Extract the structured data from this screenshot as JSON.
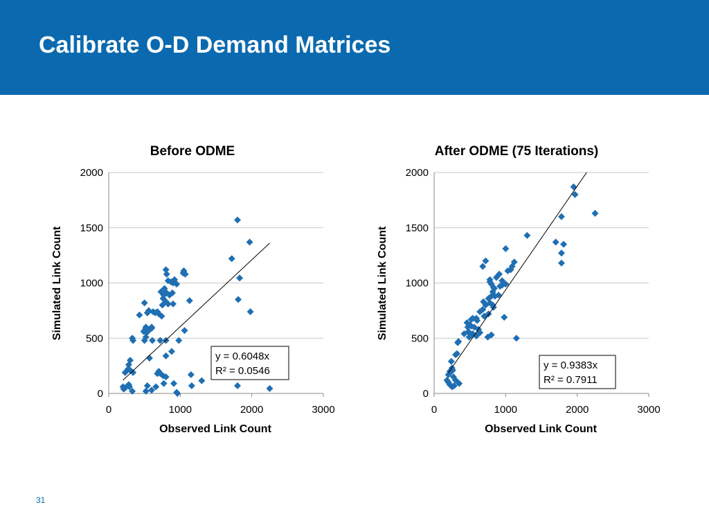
{
  "slide": {
    "title": "Calibrate O-D Demand Matrices",
    "page_number": "31",
    "title_bar_color": "#0b6aaf"
  },
  "chart_data": [
    {
      "type": "scatter",
      "title": "Before ODME",
      "xlabel": "Observed Link Count",
      "ylabel": "Simulated Link Count",
      "xlim": [
        0,
        3000
      ],
      "ylim": [
        0,
        2000
      ],
      "xticks": [
        "0",
        "1000",
        "2000",
        "3000"
      ],
      "yticks": [
        "0",
        "500",
        "1000",
        "1500",
        "2000"
      ],
      "marker": "diamond",
      "marker_color": "#1f6fb2",
      "grid": "horizontal",
      "trendline": {
        "slope": 0.6048,
        "x_range": [
          200,
          2250
        ],
        "equation": "y = 0.6048x",
        "r2": "R² = 0.0546"
      },
      "points": [
        [
          1800,
          1570
        ],
        [
          1970,
          1370
        ],
        [
          1720,
          1220
        ],
        [
          1830,
          1045
        ],
        [
          1810,
          850
        ],
        [
          1980,
          740
        ],
        [
          1800,
          70
        ],
        [
          2250,
          45
        ],
        [
          1300,
          115
        ],
        [
          800,
          1120
        ],
        [
          810,
          1080
        ],
        [
          1050,
          1110
        ],
        [
          1070,
          1080
        ],
        [
          1040,
          1090
        ],
        [
          870,
          1010
        ],
        [
          830,
          1020
        ],
        [
          900,
          1000
        ],
        [
          950,
          990
        ],
        [
          920,
          1030
        ],
        [
          730,
          920
        ],
        [
          780,
          950
        ],
        [
          810,
          910
        ],
        [
          890,
          910
        ],
        [
          770,
          890
        ],
        [
          850,
          890
        ],
        [
          760,
          860
        ],
        [
          800,
          830
        ],
        [
          830,
          810
        ],
        [
          900,
          810
        ],
        [
          750,
          800
        ],
        [
          1130,
          840
        ],
        [
          500,
          820
        ],
        [
          620,
          740
        ],
        [
          560,
          750
        ],
        [
          430,
          710
        ],
        [
          540,
          730
        ],
        [
          700,
          720
        ],
        [
          680,
          740
        ],
        [
          740,
          700
        ],
        [
          650,
          730
        ],
        [
          600,
          600
        ],
        [
          520,
          600
        ],
        [
          510,
          580
        ],
        [
          560,
          570
        ],
        [
          600,
          590
        ],
        [
          490,
          560
        ],
        [
          530,
          550
        ],
        [
          1060,
          570
        ],
        [
          520,
          510
        ],
        [
          500,
          480
        ],
        [
          330,
          500
        ],
        [
          340,
          480
        ],
        [
          720,
          480
        ],
        [
          800,
          480
        ],
        [
          610,
          480
        ],
        [
          980,
          480
        ],
        [
          880,
          380
        ],
        [
          800,
          340
        ],
        [
          570,
          320
        ],
        [
          1150,
          170
        ],
        [
          700,
          200
        ],
        [
          720,
          180
        ],
        [
          760,
          160
        ],
        [
          680,
          180
        ],
        [
          800,
          150
        ],
        [
          300,
          300
        ],
        [
          280,
          260
        ],
        [
          230,
          190
        ],
        [
          270,
          220
        ],
        [
          300,
          210
        ],
        [
          340,
          190
        ],
        [
          200,
          60
        ],
        [
          230,
          50
        ],
        [
          210,
          40
        ],
        [
          280,
          80
        ],
        [
          290,
          60
        ],
        [
          540,
          70
        ],
        [
          660,
          60
        ],
        [
          770,
          90
        ],
        [
          910,
          90
        ],
        [
          1160,
          70
        ],
        [
          600,
          30
        ],
        [
          520,
          20
        ],
        [
          330,
          20
        ],
        [
          950,
          10
        ],
        [
          960,
          0
        ]
      ]
    },
    {
      "type": "scatter",
      "title": "After ODME (75 Iterations)",
      "xlabel": "Observed Link Count",
      "ylabel": "Simulated Link Count",
      "xlim": [
        0,
        3000
      ],
      "ylim": [
        0,
        2000
      ],
      "xticks": [
        "0",
        "1000",
        "2000",
        "3000"
      ],
      "yticks": [
        "0",
        "500",
        "1000",
        "1500",
        "2000"
      ],
      "marker": "diamond",
      "marker_color": "#1f6fb2",
      "grid": "horizontal",
      "trendline": {
        "slope": 0.9383,
        "x_range": [
          200,
          2131
        ],
        "equation": "y = 0.9383x",
        "r2": "R² = 0.7911"
      },
      "points": [
        [
          1950,
          1870
        ],
        [
          1970,
          1800
        ],
        [
          2250,
          1630
        ],
        [
          1780,
          1600
        ],
        [
          1300,
          1430
        ],
        [
          1700,
          1370
        ],
        [
          1810,
          1350
        ],
        [
          1780,
          1270
        ],
        [
          1780,
          1180
        ],
        [
          1000,
          1310
        ],
        [
          720,
          1200
        ],
        [
          680,
          1150
        ],
        [
          1120,
          1190
        ],
        [
          1090,
          1150
        ],
        [
          1070,
          1120
        ],
        [
          1030,
          1110
        ],
        [
          910,
          1080
        ],
        [
          780,
          1030
        ],
        [
          870,
          1050
        ],
        [
          950,
          1020
        ],
        [
          950,
          980
        ],
        [
          1000,
          990
        ],
        [
          920,
          970
        ],
        [
          800,
          990
        ],
        [
          830,
          960
        ],
        [
          780,
          1010
        ],
        [
          840,
          950
        ],
        [
          820,
          920
        ],
        [
          850,
          880
        ],
        [
          800,
          880
        ],
        [
          900,
          890
        ],
        [
          760,
          860
        ],
        [
          690,
          830
        ],
        [
          780,
          820
        ],
        [
          820,
          800
        ],
        [
          830,
          780
        ],
        [
          720,
          800
        ],
        [
          680,
          760
        ],
        [
          640,
          740
        ],
        [
          700,
          700
        ],
        [
          760,
          720
        ],
        [
          590,
          680
        ],
        [
          600,
          660
        ],
        [
          980,
          690
        ],
        [
          540,
          680
        ],
        [
          520,
          670
        ],
        [
          460,
          640
        ],
        [
          500,
          620
        ],
        [
          470,
          600
        ],
        [
          520,
          610
        ],
        [
          560,
          600
        ],
        [
          620,
          580
        ],
        [
          640,
          550
        ],
        [
          480,
          560
        ],
        [
          500,
          540
        ],
        [
          540,
          540
        ],
        [
          590,
          520
        ],
        [
          750,
          510
        ],
        [
          800,
          530
        ],
        [
          1150,
          500
        ],
        [
          490,
          510
        ],
        [
          420,
          540
        ],
        [
          330,
          460
        ],
        [
          340,
          470
        ],
        [
          320,
          360
        ],
        [
          300,
          350
        ],
        [
          240,
          290
        ],
        [
          250,
          230
        ],
        [
          220,
          200
        ],
        [
          200,
          170
        ],
        [
          300,
          120
        ],
        [
          270,
          150
        ],
        [
          180,
          120
        ],
        [
          200,
          100
        ],
        [
          220,
          80
        ],
        [
          250,
          60
        ],
        [
          350,
          90
        ],
        [
          280,
          70
        ],
        [
          240,
          200
        ],
        [
          260,
          210
        ]
      ]
    }
  ]
}
